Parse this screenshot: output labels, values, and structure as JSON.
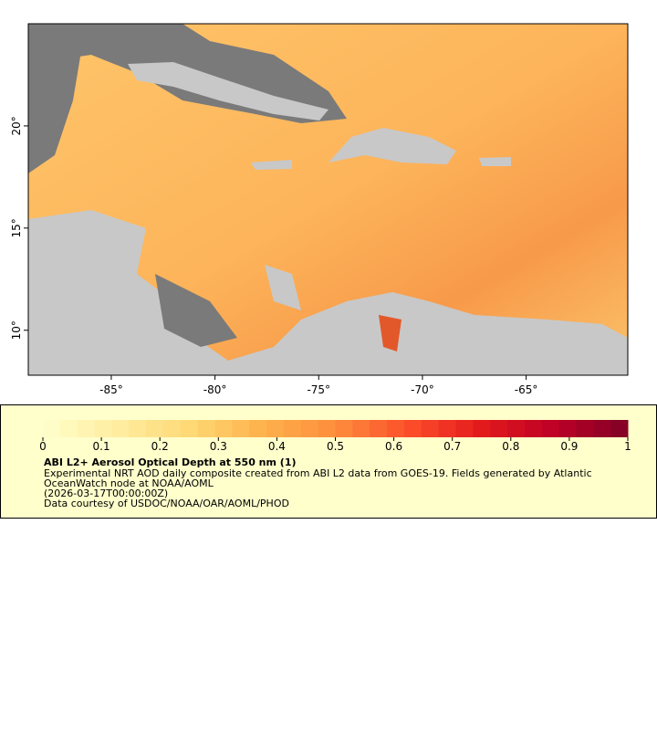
{
  "map": {
    "xlim": [
      -89,
      -60.1
    ],
    "ylim": [
      7.8,
      25
    ],
    "xticks": [
      {
        "value": -85,
        "label": "-85°"
      },
      {
        "value": -80,
        "label": "-80°"
      },
      {
        "value": -75,
        "label": "-75°"
      },
      {
        "value": -70,
        "label": "-70°"
      },
      {
        "value": -65,
        "label": "-65°"
      }
    ],
    "yticks": [
      {
        "value": 10,
        "label": "10°"
      },
      {
        "value": 15,
        "label": "15°"
      },
      {
        "value": 20,
        "label": "20°"
      }
    ]
  },
  "colorbar": {
    "clim": [
      0,
      1
    ],
    "ticks": [
      0,
      0.1,
      0.2,
      0.3,
      0.4,
      0.5,
      0.6,
      0.7,
      0.8,
      0.9,
      1
    ],
    "colors": [
      "#ffffcc",
      "#ffeda0",
      "#fed976",
      "#feb24c",
      "#fd8d3c",
      "#fc4e2a",
      "#e31a1c",
      "#bd0026",
      "#800026"
    ]
  },
  "caption": {
    "title": "ABI L2+ Aerosol Optical Depth at 550 nm (1)",
    "lines": [
      "Experimental NRT AOD daily composite created from ABI L2 data from GOES-19. Fields generated by Atlantic",
      "OceanWatch node at NOAA/AOML",
      "(2026-03-17T00:00:00Z)",
      "Data courtesy of USDOC/NOAA/OAR/AOML/PHOD"
    ]
  }
}
